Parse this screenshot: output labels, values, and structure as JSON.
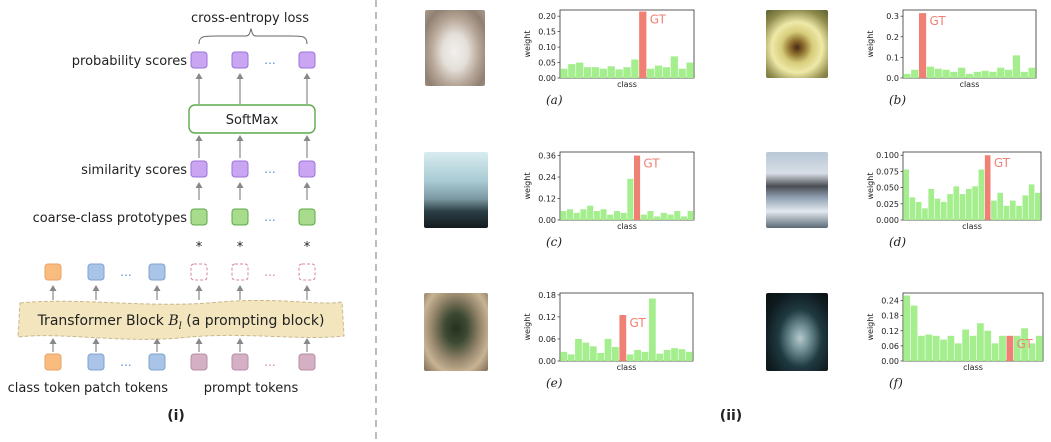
{
  "left_panel": {
    "top_label": "cross-entropy loss",
    "row_labels": {
      "probability": "probability scores",
      "similarity": "similarity scores",
      "prototypes": "coarse-class prototypes"
    },
    "softmax_label": "SoftMax",
    "ellipsis": "...",
    "star": "*",
    "transformer_label_prefix": "Transformer Block ",
    "transformer_label_var": "B",
    "transformer_label_sub": "l",
    "transformer_label_suffix": " (a prompting block)",
    "token_labels": {
      "class": "class token",
      "patch": "patch tokens",
      "prompt": "prompt tokens"
    },
    "panel_label": "(i)",
    "colors": {
      "purple": "#C9A5F2",
      "purple_border": "#9A72D8",
      "green": "#A8DC8C",
      "green_border": "#5DA84A",
      "orange": "#F9BC7E",
      "blue": "#A9C4E6",
      "mauve": "#D5B0C4",
      "transformer_fill": "#F3E6BF"
    }
  },
  "right_panel": {
    "panel_label": "(ii)",
    "xlabel": "class",
    "ylabel": "weight",
    "gt_label": "GT",
    "bar_color": "#A4EE8E",
    "gt_color": "#F08074"
  },
  "chart_data": [
    {
      "type": "bar",
      "caption": "(a)",
      "xlabel": "class",
      "ylabel": "weight",
      "ylim": [
        0,
        0.22
      ],
      "yticks": [
        "0.00",
        "0.05",
        "0.10",
        "0.15",
        "0.20"
      ],
      "ytick_values": [
        0,
        0.05,
        0.1,
        0.15,
        0.2
      ],
      "gt_index": 10,
      "values": [
        0.03,
        0.045,
        0.05,
        0.035,
        0.035,
        0.03,
        0.038,
        0.028,
        0.035,
        0.06,
        0.215,
        0.03,
        0.04,
        0.035,
        0.07,
        0.03,
        0.05
      ]
    },
    {
      "type": "bar",
      "caption": "(b)",
      "xlabel": "class",
      "ylabel": "weight",
      "ylim": [
        0,
        0.33
      ],
      "yticks": [
        "0.0",
        "0.1",
        "0.2",
        "0.3"
      ],
      "ytick_values": [
        0,
        0.1,
        0.2,
        0.3
      ],
      "gt_index": 2,
      "values": [
        0.02,
        0.04,
        0.315,
        0.055,
        0.045,
        0.04,
        0.03,
        0.05,
        0.02,
        0.03,
        0.035,
        0.03,
        0.05,
        0.04,
        0.11,
        0.03,
        0.05
      ]
    },
    {
      "type": "bar",
      "caption": "(c)",
      "xlabel": "class",
      "ylabel": "weight",
      "ylim": [
        0,
        0.38
      ],
      "yticks": [
        "0.00",
        "0.12",
        "0.24",
        "0.36"
      ],
      "ytick_values": [
        0,
        0.12,
        0.24,
        0.36
      ],
      "gt_index": 11,
      "values": [
        0.05,
        0.06,
        0.04,
        0.06,
        0.08,
        0.05,
        0.06,
        0.03,
        0.05,
        0.04,
        0.23,
        0.36,
        0.03,
        0.05,
        0.02,
        0.04,
        0.03,
        0.05,
        0.02,
        0.05
      ]
    },
    {
      "type": "bar",
      "caption": "(d)",
      "xlabel": "class",
      "ylabel": "weight",
      "ylim": [
        0,
        0.105
      ],
      "yticks": [
        "0.000",
        "0.025",
        "0.050",
        "0.075",
        "0.100"
      ],
      "ytick_values": [
        0,
        0.025,
        0.05,
        0.075,
        0.1
      ],
      "gt_index": 13,
      "values": [
        0.078,
        0.035,
        0.028,
        0.018,
        0.048,
        0.033,
        0.028,
        0.04,
        0.052,
        0.04,
        0.048,
        0.052,
        0.078,
        0.1,
        0.03,
        0.042,
        0.022,
        0.03,
        0.022,
        0.038,
        0.055,
        0.042
      ]
    },
    {
      "type": "bar",
      "caption": "(e)",
      "xlabel": "class",
      "ylabel": "weight",
      "ylim": [
        0,
        0.185
      ],
      "yticks": [
        "0.00",
        "0.06",
        "0.12",
        "0.18"
      ],
      "ytick_values": [
        0,
        0.06,
        0.12,
        0.18
      ],
      "gt_index": 8,
      "values": [
        0.025,
        0.018,
        0.06,
        0.05,
        0.04,
        0.022,
        0.06,
        0.038,
        0.125,
        0.018,
        0.03,
        0.025,
        0.17,
        0.02,
        0.03,
        0.035,
        0.032,
        0.025
      ]
    },
    {
      "type": "bar",
      "caption": "(f)",
      "xlabel": "class",
      "ylabel": "weight",
      "ylim": [
        0,
        0.27
      ],
      "yticks": [
        "0.00",
        "0.06",
        "0.12",
        "0.18",
        "0.24"
      ],
      "ytick_values": [
        0,
        0.06,
        0.12,
        0.18,
        0.24
      ],
      "gt_index": 14,
      "values": [
        0.26,
        0.22,
        0.1,
        0.105,
        0.1,
        0.085,
        0.1,
        0.07,
        0.125,
        0.1,
        0.15,
        0.12,
        0.07,
        0.1,
        0.1,
        0.1,
        0.13,
        0.07,
        0.1
      ]
    }
  ]
}
